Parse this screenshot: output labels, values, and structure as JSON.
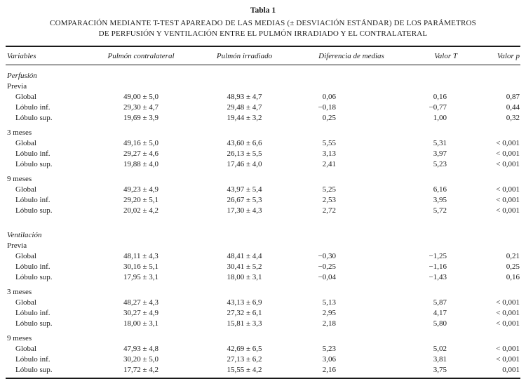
{
  "table": {
    "label": "Tabla 1",
    "title_line1": "COMPARACIÓN MEDIANTE T-TEST APAREADO DE LAS MEDIAS (± DESVIACIÓN ESTÁNDAR) DE LOS PARÁMETROS",
    "title_line2": "DE PERFUSIÓN Y VENTILACIÓN ENTRE EL PULMÓN IRRADIADO Y EL CONTRALATERAL",
    "columns": [
      "Variables",
      "Pulmón contralateral",
      "Pulmón irradiado",
      "Diferencia de medias",
      "Valor T",
      "Valor p"
    ],
    "sections": [
      {
        "name": "Perfusión",
        "groups": [
          {
            "name": "Previa",
            "rows": [
              {
                "label": "Global",
                "contralateral": "49,00 ± 5,0",
                "irradiado": "48,93 ± 4,7",
                "diferencia": "0,06",
                "valor_t": "0,16",
                "valor_p": "0,87"
              },
              {
                "label": "Lóbulo inf.",
                "contralateral": "29,30 ± 4,7",
                "irradiado": "29,48 ± 4,7",
                "diferencia": "−0,18",
                "valor_t": "−0,77",
                "valor_p": "0,44"
              },
              {
                "label": "Lóbulo sup.",
                "contralateral": "19,69 ± 3,9",
                "irradiado": "19,44 ± 3,2",
                "diferencia": "0,25",
                "valor_t": "1,00",
                "valor_p": "0,32"
              }
            ]
          },
          {
            "name": "3 meses",
            "rows": [
              {
                "label": "Global",
                "contralateral": "49,16 ± 5,0",
                "irradiado": "43,60 ± 6,6",
                "diferencia": "5,55",
                "valor_t": "5,31",
                "valor_p": "< 0,001"
              },
              {
                "label": "Lóbulo inf.",
                "contralateral": "29,27 ± 4,6",
                "irradiado": "26,13 ± 5,5",
                "diferencia": "3,13",
                "valor_t": "3,97",
                "valor_p": "< 0,001"
              },
              {
                "label": "Lóbulo sup.",
                "contralateral": "19,88 ± 4,0",
                "irradiado": "17,46 ± 4,0",
                "diferencia": "2,41",
                "valor_t": "5,23",
                "valor_p": "< 0,001"
              }
            ]
          },
          {
            "name": "9 meses",
            "rows": [
              {
                "label": "Global",
                "contralateral": "49,23 ± 4,9",
                "irradiado": "43,97 ± 5,4",
                "diferencia": "5,25",
                "valor_t": "6,16",
                "valor_p": "< 0,001"
              },
              {
                "label": "Lóbulo inf.",
                "contralateral": "29,20 ± 5,1",
                "irradiado": "26,67 ± 5,3",
                "diferencia": "2,53",
                "valor_t": "3,95",
                "valor_p": "< 0,001"
              },
              {
                "label": "Lóbulo sup.",
                "contralateral": "20,02 ± 4,2",
                "irradiado": "17,30 ± 4,3",
                "diferencia": "2,72",
                "valor_t": "5,72",
                "valor_p": "< 0,001"
              }
            ]
          }
        ]
      },
      {
        "name": "Ventilación",
        "groups": [
          {
            "name": "Previa",
            "rows": [
              {
                "label": "Global",
                "contralateral": "48,11 ± 4,3",
                "irradiado": "48,41 ± 4,4",
                "diferencia": "−0,30",
                "valor_t": "−1,25",
                "valor_p": "0,21"
              },
              {
                "label": "Lóbulo inf.",
                "contralateral": "30,16 ± 5,1",
                "irradiado": "30,41 ± 5,2",
                "diferencia": "−0,25",
                "valor_t": "−1,16",
                "valor_p": "0,25"
              },
              {
                "label": "Lóbulo sup.",
                "contralateral": "17,95 ± 3,1",
                "irradiado": "18,00 ± 3,1",
                "diferencia": "−0,04",
                "valor_t": "−1,43",
                "valor_p": "0,16"
              }
            ]
          },
          {
            "name": "3 meses",
            "rows": [
              {
                "label": "Global",
                "contralateral": "48,27 ± 4,3",
                "irradiado": "43,13 ± 6,9",
                "diferencia": "5,13",
                "valor_t": "5,87",
                "valor_p": "< 0,001"
              },
              {
                "label": "Lóbulo inf.",
                "contralateral": "30,27 ± 4,9",
                "irradiado": "27,32 ± 6,1",
                "diferencia": "2,95",
                "valor_t": "4,17",
                "valor_p": "< 0,001"
              },
              {
                "label": "Lóbulo sup.",
                "contralateral": "18,00 ± 3,1",
                "irradiado": "15,81 ± 3,3",
                "diferencia": "2,18",
                "valor_t": "5,80",
                "valor_p": "< 0,001"
              }
            ]
          },
          {
            "name": "9 meses",
            "rows": [
              {
                "label": "Global",
                "contralateral": "47,93 ± 4,8",
                "irradiado": "42,69 ± 6,5",
                "diferencia": "5,23",
                "valor_t": "5,02",
                "valor_p": "< 0,001"
              },
              {
                "label": "Lóbulo inf.",
                "contralateral": "30,20 ± 5,0",
                "irradiado": "27,13 ± 6,2",
                "diferencia": "3,06",
                "valor_t": "3,81",
                "valor_p": "< 0,001"
              },
              {
                "label": "Lóbulo sup.",
                "contralateral": "17,72 ± 4,2",
                "irradiado": "15,55 ± 4,2",
                "diferencia": "2,16",
                "valor_t": "3,75",
                "valor_p": "0,001"
              }
            ]
          }
        ]
      }
    ]
  }
}
